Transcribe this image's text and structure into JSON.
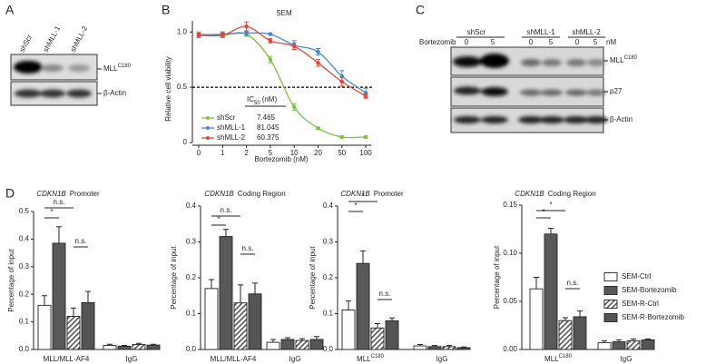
{
  "panel_labels": [
    "A",
    "B",
    "C",
    "D"
  ],
  "blot_a": {
    "lanes": [
      "shScr",
      "shMLL-1",
      "shMLL-2"
    ],
    "rows": [
      {
        "label": "MLL",
        "sup": "C180"
      },
      {
        "label": "β-Actin"
      }
    ]
  },
  "blot_c": {
    "groups": [
      "shScr",
      "shMLL-1",
      "shMLL-2"
    ],
    "treatment": "Bortezomib",
    "doses": [
      0,
      5,
      0,
      5,
      0,
      5
    ],
    "unit": "nM",
    "rows": [
      {
        "label": "MLL",
        "sup": "C180"
      },
      {
        "label": "p27"
      },
      {
        "label": "β-Actin"
      }
    ]
  },
  "chart_data": [
    {
      "type": "line",
      "title": "SEM",
      "x_label": "Bortezomib (nM)",
      "y_label": "Relative cell viability",
      "categories": [
        "0",
        "1",
        "2",
        "5",
        "10",
        "20",
        "50",
        "100"
      ],
      "ylim": [
        0,
        1.1
      ],
      "yticks": [
        0,
        0.5,
        {
          "value": 1,
          "label": "1.0"
        }
      ],
      "hline": 0.5,
      "legend_header": {
        "main": "IC",
        "sub": "50",
        "unit": "(nM)"
      },
      "series": [
        {
          "name": "shScr",
          "color": "#7dc242",
          "ic50": 7.465,
          "values": [
            0.98,
            0.97,
            0.98,
            0.75,
            0.32,
            0.13,
            0.05,
            0.05
          ],
          "errors": [
            0.02,
            0.02,
            0.02,
            0.03,
            0.03,
            0.01,
            0.01,
            0.01
          ]
        },
        {
          "name": "shMLL-1",
          "color": "#4a86c5",
          "ic50": 81.045,
          "values": [
            0.97,
            0.98,
            0.99,
            0.98,
            0.88,
            0.82,
            0.6,
            0.45
          ],
          "errors": [
            0.02,
            0.02,
            0.02,
            0.01,
            0.04,
            0.03,
            0.05,
            0.04
          ]
        },
        {
          "name": "shMLL-2",
          "color": "#e0473c",
          "ic50": 60.375,
          "values": [
            0.97,
            0.97,
            1.05,
            0.92,
            0.87,
            0.72,
            0.55,
            0.42
          ],
          "errors": [
            0.02,
            0.02,
            0.04,
            0.02,
            0.03,
            0.03,
            0.04,
            0.02
          ]
        }
      ]
    },
    {
      "type": "bar",
      "title_gene": "CDKN1B",
      "title": "Promoter",
      "y_label": "Percentage of input",
      "categories": [
        "MLL/MLL-AF4",
        "IgG"
      ],
      "category_sup": [
        null,
        null
      ],
      "ylim": [
        0,
        0.5
      ],
      "yticks": [
        {
          "value": 0,
          "label": "0.0"
        },
        0.1,
        0.2,
        0.3,
        0.4,
        0.5
      ],
      "annotations": [
        "n.s.",
        "*",
        "n.s."
      ],
      "series": [
        {
          "name": "SEM-Ctrl",
          "color": "#ffffff",
          "hatch": false,
          "values": [
            0.16,
            0.015
          ],
          "errors": [
            0.035,
            0.004
          ]
        },
        {
          "name": "SEM-Bortezomib",
          "color": "#595959",
          "hatch": false,
          "values": [
            0.385,
            0.012
          ],
          "errors": [
            0.06,
            0.003
          ]
        },
        {
          "name": "SEM-R-Ctrl",
          "color": "#d0d0d0",
          "hatch": true,
          "values": [
            0.12,
            0.018
          ],
          "errors": [
            0.03,
            0.004
          ]
        },
        {
          "name": "SEM-R-Bortezomib",
          "color": "#595959",
          "hatch": true,
          "values": [
            0.17,
            0.016
          ],
          "errors": [
            0.04,
            0.003
          ]
        }
      ]
    },
    {
      "type": "bar",
      "title_gene": "CDKN1B",
      "title": "Coding Region",
      "y_label": "Percentage of input",
      "categories": [
        "MLL/MLL-AF4",
        "IgG"
      ],
      "category_sup": [
        null,
        null
      ],
      "ylim": [
        0,
        0.4
      ],
      "yticks": [
        {
          "value": 0,
          "label": "0.0"
        },
        0.1,
        0.2,
        0.3,
        0.4
      ],
      "annotations": [
        "n.s.",
        "*",
        "n.s."
      ],
      "series": [
        {
          "color": "#ffffff",
          "hatch": false,
          "values": [
            0.17,
            0.02
          ],
          "errors": [
            0.025,
            0.008
          ]
        },
        {
          "color": "#595959",
          "hatch": false,
          "values": [
            0.315,
            0.028
          ],
          "errors": [
            0.02,
            0.005
          ]
        },
        {
          "color": "#d0d0d0",
          "hatch": true,
          "values": [
            0.13,
            0.025
          ],
          "errors": [
            0.05,
            0.005
          ]
        },
        {
          "color": "#595959",
          "hatch": true,
          "values": [
            0.155,
            0.028
          ],
          "errors": [
            0.03,
            0.008
          ]
        }
      ]
    },
    {
      "type": "bar",
      "title_gene": "CDKN1B",
      "title": "Promoter",
      "y_label": "Percentage of input",
      "categories": [
        "MLL",
        "IgG"
      ],
      "category_sup": [
        "C180",
        null
      ],
      "ylim": [
        0,
        0.4
      ],
      "yticks": [
        {
          "value": 0,
          "label": "0.0"
        },
        0.1,
        0.2,
        0.3,
        0.4
      ],
      "annotations": [
        "*",
        "*",
        "n.s."
      ],
      "series": [
        {
          "color": "#ffffff",
          "hatch": false,
          "values": [
            0.11,
            0.01
          ],
          "errors": [
            0.025,
            0.004
          ]
        },
        {
          "color": "#595959",
          "hatch": false,
          "values": [
            0.24,
            0.008
          ],
          "errors": [
            0.035,
            0.003
          ]
        },
        {
          "color": "#d0d0d0",
          "hatch": true,
          "values": [
            0.06,
            0.008
          ],
          "errors": [
            0.012,
            0.003
          ]
        },
        {
          "color": "#595959",
          "hatch": true,
          "values": [
            0.08,
            0.005
          ],
          "errors": [
            0.008,
            0.002
          ]
        }
      ]
    },
    {
      "type": "bar",
      "title_gene": "CDKN1B",
      "title": "Coding Region",
      "y_label": "Percentage of input",
      "categories": [
        "MLL",
        "IgG"
      ],
      "category_sup": [
        "C180",
        null
      ],
      "ylim": [
        0,
        0.15
      ],
      "yticks": [
        {
          "value": 0,
          "label": "0.00"
        },
        0.05,
        {
          "value": 0.1,
          "label": "0.10"
        },
        0.15
      ],
      "annotations": [
        "*",
        "*",
        "n.s."
      ],
      "series": [
        {
          "color": "#ffffff",
          "hatch": false,
          "values": [
            0.063,
            0.007
          ],
          "errors": [
            0.012,
            0.002
          ]
        },
        {
          "color": "#595959",
          "hatch": false,
          "values": [
            0.12,
            0.008
          ],
          "errors": [
            0.006,
            0.002
          ]
        },
        {
          "color": "#d0d0d0",
          "hatch": true,
          "values": [
            0.03,
            0.009
          ],
          "errors": [
            0.003,
            0.002
          ]
        },
        {
          "color": "#595959",
          "hatch": true,
          "values": [
            0.034,
            0.01
          ],
          "errors": [
            0.006,
            0.001
          ]
        }
      ]
    }
  ]
}
